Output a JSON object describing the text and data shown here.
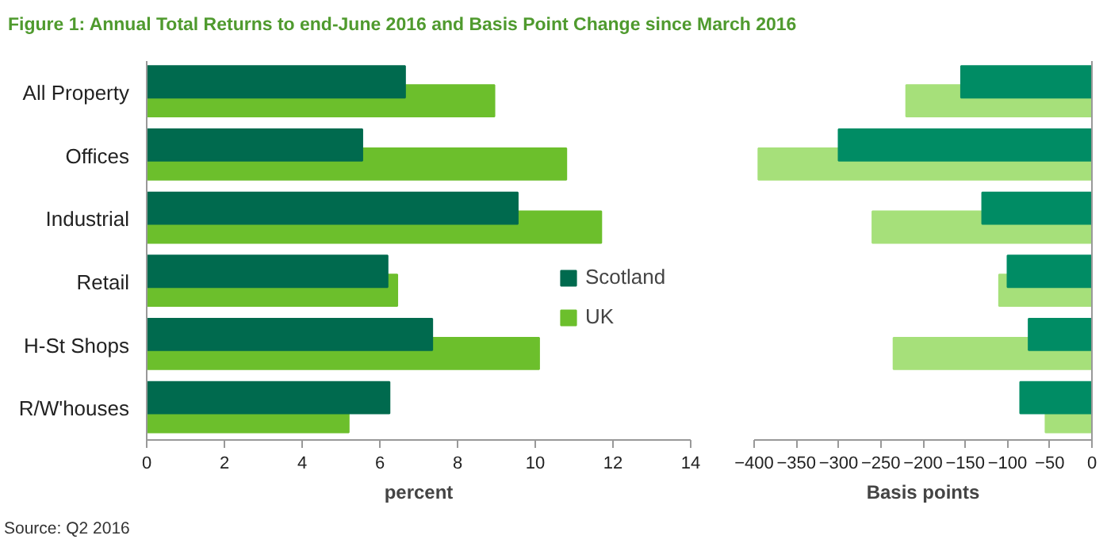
{
  "chart_data": [
    {
      "type": "bar",
      "orientation": "horizontal",
      "title": "Figure 1: Annual Total Returns to end-June 2016 and Basis Point Change since March 2016",
      "xlabel": "percent",
      "annotations": [
        "Source: Q2 2016"
      ],
      "categories": [
        "All Property",
        "Offices",
        "Industrial",
        "Retail",
        "H-St Shops",
        "R/W'houses"
      ],
      "series": [
        {
          "name": "Scotland",
          "color": "#006a4e",
          "values": [
            6.65,
            5.55,
            9.55,
            6.2,
            7.35,
            6.25
          ]
        },
        {
          "name": "UK",
          "color": "#6cbf2c",
          "values": [
            8.95,
            10.8,
            11.7,
            6.45,
            10.1,
            5.2
          ]
        }
      ],
      "xlim": [
        0,
        14
      ],
      "xticks": [
        0,
        2,
        4,
        6,
        8,
        10,
        12,
        14
      ],
      "legend": "right",
      "grid": false
    },
    {
      "type": "bar",
      "orientation": "horizontal",
      "xlabel": "Basis points",
      "tick_labels": "x",
      "categories": [
        null,
        null,
        null,
        null,
        null,
        null
      ],
      "series": [
        {
          "color": "#008c64",
          "values": [
            -155,
            -300,
            -130,
            -100,
            -75,
            -85
          ]
        },
        {
          "color": "#a6e07a",
          "values": [
            -220,
            -395,
            -260,
            -110,
            -235,
            -55
          ]
        }
      ],
      "xlim": [
        -400,
        0
      ],
      "xticks": [
        -400,
        -350,
        -300,
        -250,
        -200,
        -150,
        -100,
        -50,
        0
      ],
      "grid": false
    }
  ]
}
